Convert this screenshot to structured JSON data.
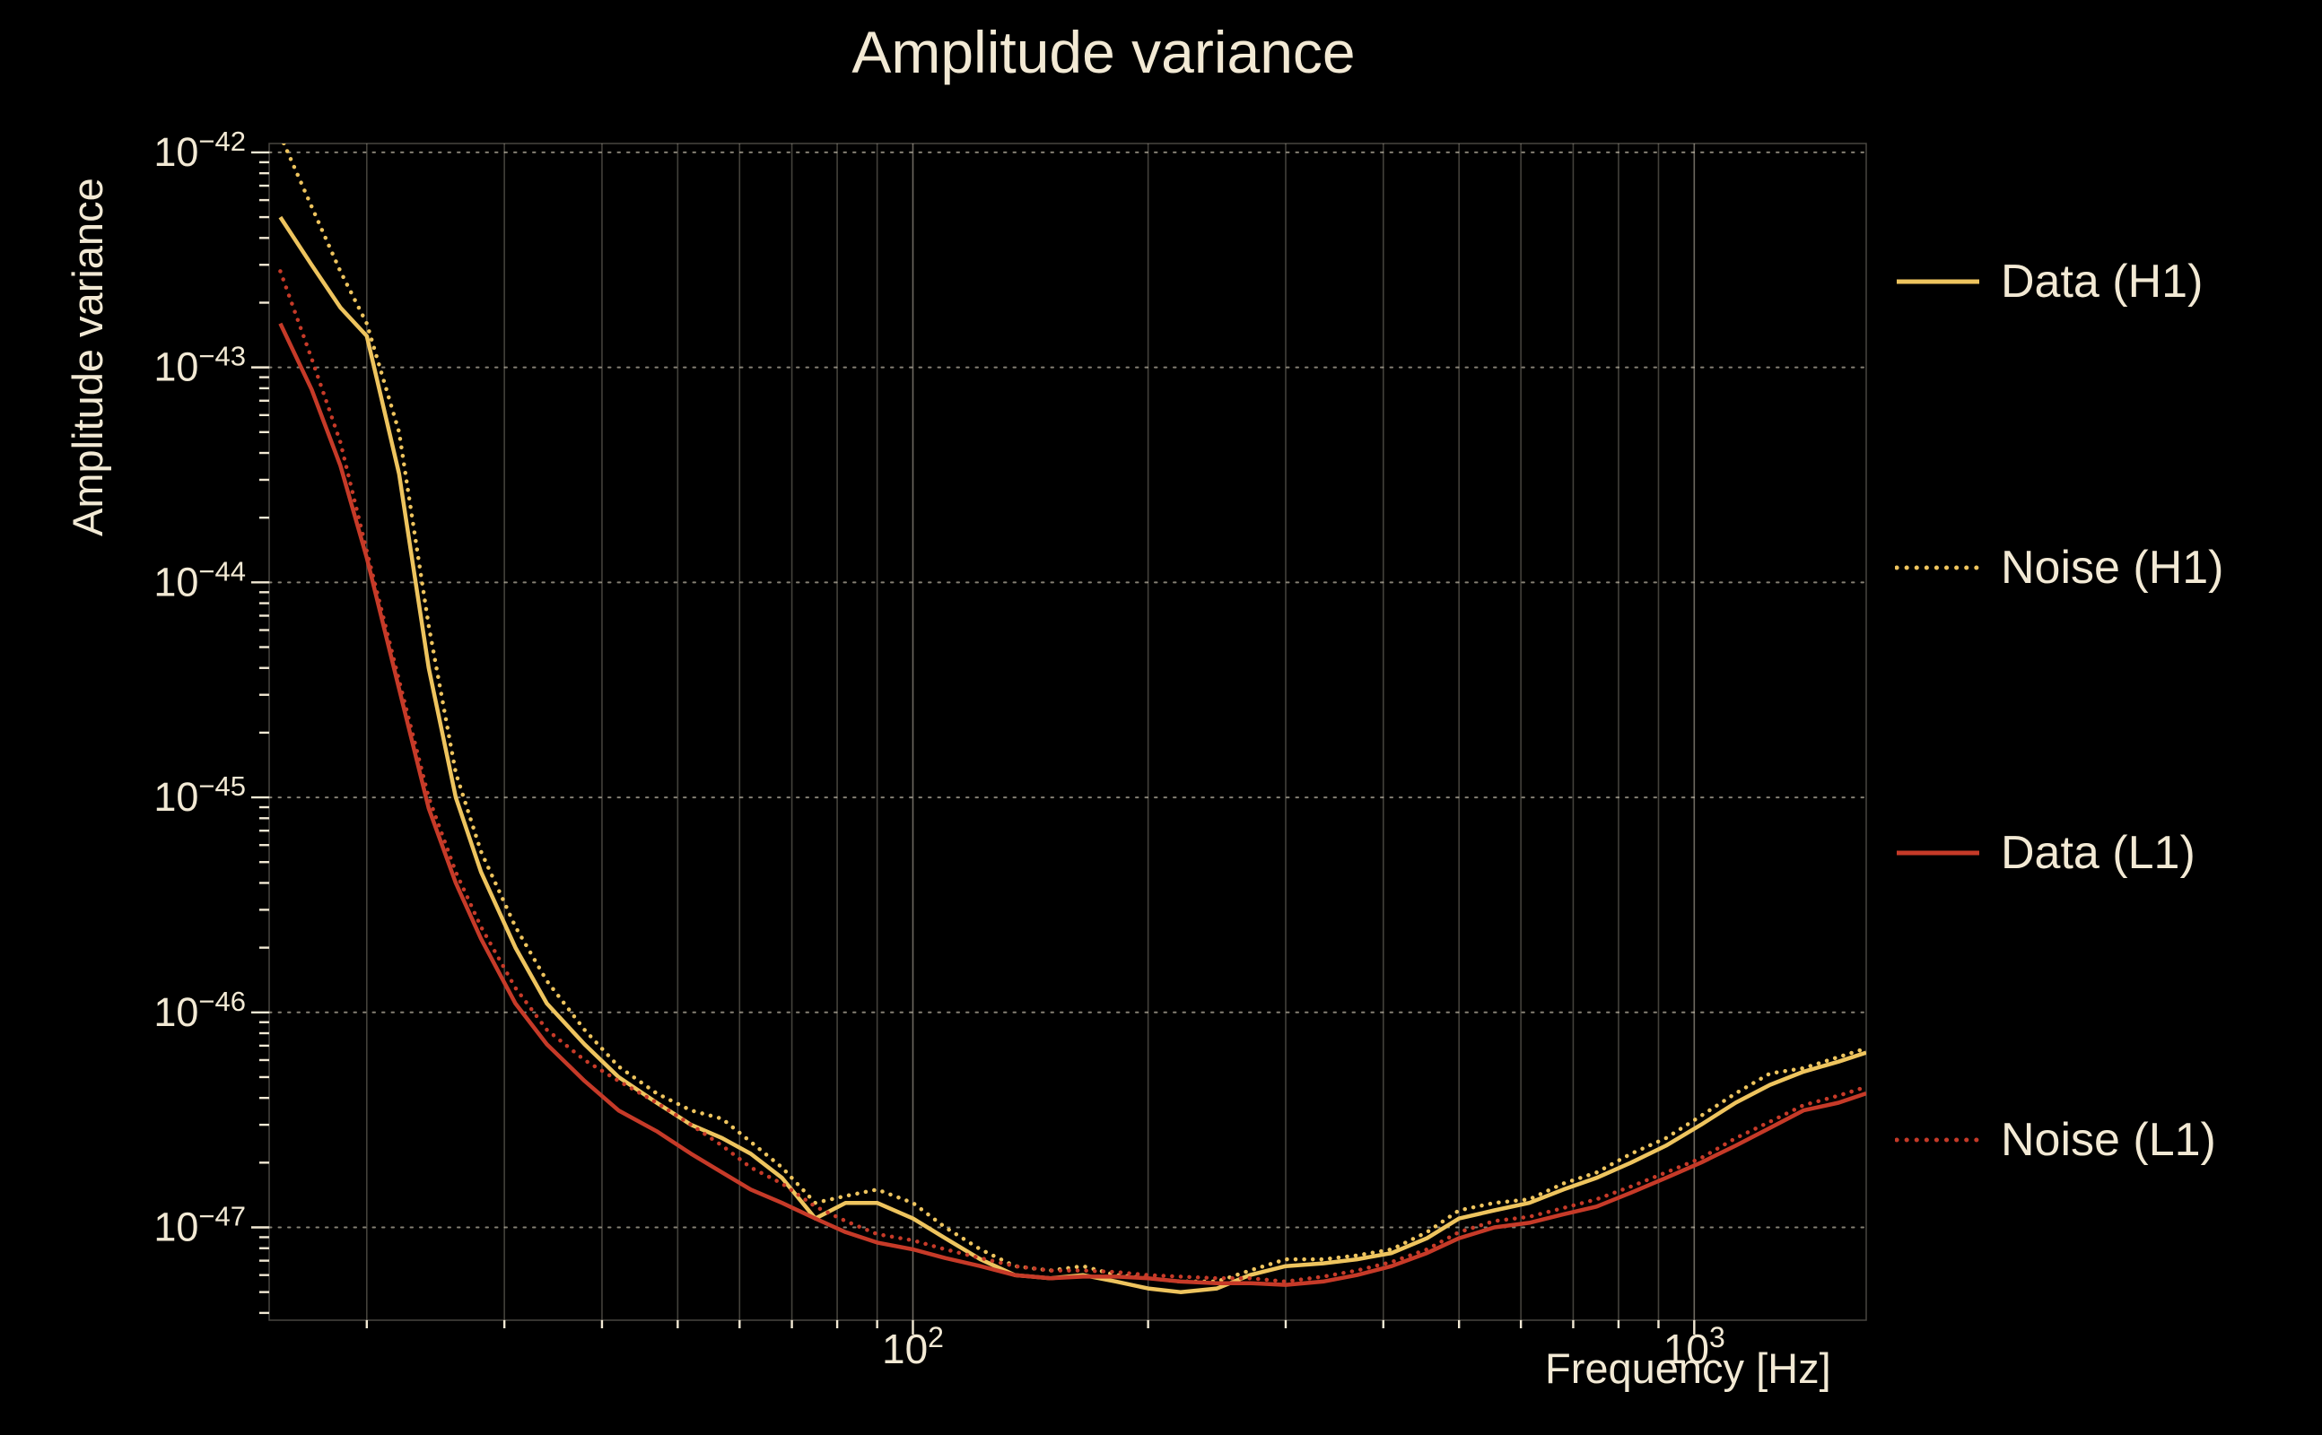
{
  "colors": {
    "background": "#000000",
    "text": "#f2e9d4",
    "h1": "#eec45e",
    "l1": "#c63a28",
    "grid": "#f2e9d4"
  },
  "chart_data": {
    "type": "line",
    "title": "Amplitude variance",
    "xlabel": "Frequency [Hz]",
    "ylabel": "Amplitude variance",
    "xscale": "log",
    "yscale": "log",
    "xlim": [
      15,
      1660
    ],
    "ylim": [
      3.7e-48,
      1.1e-42
    ],
    "x_major_ticks": [
      100,
      1000
    ],
    "y_major_tick_exponents": [
      -42,
      -43,
      -44,
      -45,
      -46,
      -47
    ],
    "grid": {
      "vertical": "solid-minor-and-major",
      "horizontal": "dotted-decades"
    },
    "legend_position": "right-outside",
    "x": [
      15.5,
      17,
      18.5,
      20,
      22,
      24,
      26,
      28,
      31,
      34,
      38,
      42,
      47,
      52,
      57,
      62,
      68,
      75,
      82,
      90,
      100,
      110,
      122,
      135,
      150,
      165,
      182,
      200,
      220,
      245,
      270,
      300,
      335,
      370,
      410,
      455,
      500,
      555,
      615,
      680,
      750,
      830,
      920,
      1020,
      1130,
      1250,
      1380,
      1530,
      1660
    ],
    "series": [
      {
        "name": "Data (H1)",
        "color": "#eec45e",
        "style": "solid",
        "values": [
          5e-43,
          3e-43,
          1.9e-43,
          1.4e-43,
          3.2e-44,
          4e-45,
          1e-45,
          4.5e-46,
          2e-46,
          1.1e-46,
          7.1e-47,
          5e-47,
          3.8e-47,
          3e-47,
          2.6e-47,
          2.2e-47,
          1.7e-47,
          1.1e-47,
          1.3e-47,
          1.3e-47,
          1.1e-47,
          8.9e-48,
          7.1e-48,
          6e-48,
          5.8e-48,
          6e-48,
          5.6e-48,
          5.2e-48,
          5e-48,
          5.2e-48,
          6e-48,
          6.6e-48,
          6.8e-48,
          7.1e-48,
          7.6e-48,
          8.9e-48,
          1.1e-47,
          1.2e-47,
          1.3e-47,
          1.5e-47,
          1.7e-47,
          2e-47,
          2.4e-47,
          3e-47,
          3.8e-47,
          4.6e-47,
          5.3e-47,
          5.9e-47,
          6.5e-47
        ]
      },
      {
        "name": "Noise (H1)",
        "color": "#eec45e",
        "style": "dotted",
        "values": [
          1.2e-42,
          5.6e-43,
          2.8e-43,
          1.6e-43,
          5e-44,
          6.3e-45,
          1.3e-45,
          5.6e-46,
          2.5e-46,
          1.4e-46,
          8.3e-47,
          5.6e-47,
          4.2e-47,
          3.5e-47,
          3.2e-47,
          2.5e-47,
          1.9e-47,
          1.3e-47,
          1.4e-47,
          1.5e-47,
          1.3e-47,
          1e-47,
          7.9e-48,
          6.6e-48,
          6.3e-48,
          6.6e-48,
          6e-48,
          5.8e-48,
          5.6e-48,
          5.6e-48,
          6.3e-48,
          7.1e-48,
          7.1e-48,
          7.4e-48,
          7.9e-48,
          9.5e-48,
          1.2e-47,
          1.3e-47,
          1.35e-47,
          1.6e-47,
          1.8e-47,
          2.2e-47,
          2.6e-47,
          3.3e-47,
          4.2e-47,
          5.2e-47,
          5.5e-47,
          6.2e-47,
          6.8e-47
        ]
      },
      {
        "name": "Data (L1)",
        "color": "#c63a28",
        "style": "solid",
        "values": [
          1.6e-43,
          7.9e-44,
          3.5e-44,
          1.3e-44,
          3.2e-45,
          8.9e-46,
          4e-46,
          2.2e-46,
          1.1e-46,
          7.1e-47,
          4.8e-47,
          3.5e-47,
          2.8e-47,
          2.2e-47,
          1.8e-47,
          1.5e-47,
          1.3e-47,
          1.1e-47,
          9.5e-48,
          8.5e-48,
          7.9e-48,
          7.2e-48,
          6.6e-48,
          6e-48,
          5.8e-48,
          5.9e-48,
          5.9e-48,
          5.8e-48,
          5.6e-48,
          5.5e-48,
          5.5e-48,
          5.4e-48,
          5.6e-48,
          6e-48,
          6.6e-48,
          7.6e-48,
          8.9e-48,
          1e-47,
          1.05e-47,
          1.15e-47,
          1.25e-47,
          1.45e-47,
          1.7e-47,
          2e-47,
          2.4e-47,
          2.9e-47,
          3.5e-47,
          3.8e-47,
          4.2e-47
        ]
      },
      {
        "name": "Noise (L1)",
        "color": "#c63a28",
        "style": "dotted",
        "values": [
          2.8e-43,
          1.1e-43,
          4.5e-44,
          1.4e-44,
          3.5e-45,
          1e-45,
          4.5e-46,
          2.5e-46,
          1.3e-46,
          8.3e-47,
          6e-47,
          4.8e-47,
          3.8e-47,
          3e-47,
          2.4e-47,
          1.9e-47,
          1.6e-47,
          1.25e-47,
          1.07e-47,
          9.3e-48,
          8.7e-48,
          7.9e-48,
          7.2e-48,
          6.6e-48,
          6.3e-48,
          6.3e-48,
          6.2e-48,
          6e-48,
          5.9e-48,
          5.8e-48,
          5.8e-48,
          5.6e-48,
          5.9e-48,
          6.3e-48,
          6.9e-48,
          7.9e-48,
          9.5e-48,
          1.07e-47,
          1.12e-47,
          1.23e-47,
          1.35e-47,
          1.55e-47,
          1.8e-47,
          2.1e-47,
          2.6e-47,
          3.1e-47,
          3.7e-47,
          4.1e-47,
          4.5e-47
        ]
      }
    ]
  }
}
